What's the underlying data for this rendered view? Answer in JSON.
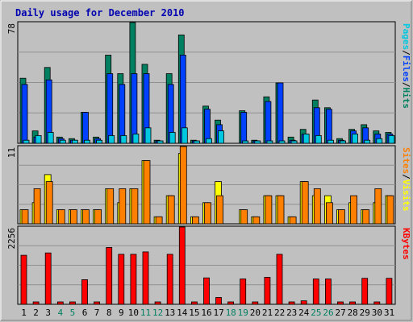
{
  "chart_data": {
    "type": "bar",
    "title": "Daily usage for December 2010",
    "x_ticks": [
      "1",
      "2",
      "3",
      "4",
      "5",
      "6",
      "7",
      "8",
      "9",
      "10",
      "11",
      "12",
      "13",
      "14",
      "15",
      "16",
      "17",
      "18",
      "19",
      "20",
      "21",
      "22",
      "23",
      "24",
      "25",
      "26",
      "27",
      "28",
      "29",
      "30",
      "31"
    ],
    "weekend_days": [
      "4",
      "5",
      "11",
      "12",
      "18",
      "19",
      "25",
      "26"
    ],
    "panels": [
      {
        "id": "hits-files-pages",
        "max_label": "78",
        "ylim": [
          0,
          78
        ],
        "axis_labels": [
          {
            "text": "Pages",
            "color": "#00c8e0"
          },
          {
            "text": "Files",
            "color": "#0040ff"
          },
          {
            "text": "Hits",
            "color": "#008060"
          }
        ],
        "separator_color": "#000000",
        "series": [
          {
            "name": "Hits",
            "color": "#008060",
            "values": [
              42,
              8,
              49,
              4,
              3,
              20,
              4,
              57,
              45,
              78,
              51,
              2,
              45,
              70,
              2,
              24,
              15,
              0,
              21,
              2,
              30,
              39,
              4,
              9,
              28,
              23,
              3,
              9,
              12,
              8,
              7
            ]
          },
          {
            "name": "Files",
            "color": "#0040ff",
            "values": [
              38,
              4,
              41,
              3,
              2,
              20,
              3,
              45,
              38,
              45,
              45,
              1,
              38,
              57,
              1,
              22,
              12,
              0,
              20,
              1,
              27,
              39,
              2,
              6,
              23,
              22,
              2,
              8,
              10,
              6,
              6
            ]
          },
          {
            "name": "Pages",
            "color": "#00c8e0",
            "values": [
              2,
              5,
              7,
              2,
              2,
              2,
              2,
              5,
              5,
              6,
              10,
              1,
              7,
              10,
              1,
              3,
              8,
              0,
              1,
              1,
              1,
              1,
              1,
              6,
              5,
              2,
              1,
              6,
              2,
              3,
              5
            ]
          }
        ]
      },
      {
        "id": "visits-sites",
        "max_label": "11",
        "ylim": [
          0,
          11
        ],
        "axis_labels": [
          {
            "text": "Sites",
            "color": "#ff8000"
          },
          {
            "text": "Visits",
            "color": "#ffff00"
          }
        ],
        "separator_color": "#000000",
        "series": [
          {
            "name": "Visits",
            "color": "#ffff00",
            "values": [
              2,
              3,
              7,
              2,
              2,
              2,
              2,
              5,
              3,
              5,
              9,
              1,
              4,
              10,
              1,
              3,
              6,
              0,
              2,
              1,
              4,
              4,
              1,
              6,
              4,
              4,
              2,
              3,
              2,
              3,
              4
            ]
          },
          {
            "name": "Sites",
            "color": "#ff8000",
            "values": [
              2,
              5,
              6,
              2,
              2,
              2,
              2,
              5,
              5,
              5,
              9,
              1,
              4,
              11,
              1,
              3,
              4,
              0,
              2,
              1,
              4,
              4,
              1,
              6,
              5,
              3,
              2,
              4,
              2,
              5,
              4
            ]
          }
        ]
      },
      {
        "id": "kbytes",
        "max_label": "2256",
        "ylim": [
          0,
          2256
        ],
        "axis_labels": [
          {
            "text": "KBytes",
            "color": "#ff0000"
          }
        ],
        "series": [
          {
            "name": "KBytes",
            "color": "#ff0000",
            "values": [
              1430,
              60,
              1500,
              20,
              20,
              720,
              40,
              1660,
              1460,
              1460,
              1530,
              40,
              1460,
              2256,
              40,
              770,
              200,
              10,
              740,
              20,
              790,
              1460,
              50,
              100,
              740,
              740,
              60,
              60,
              760,
              60,
              760
            ]
          }
        ]
      }
    ]
  }
}
